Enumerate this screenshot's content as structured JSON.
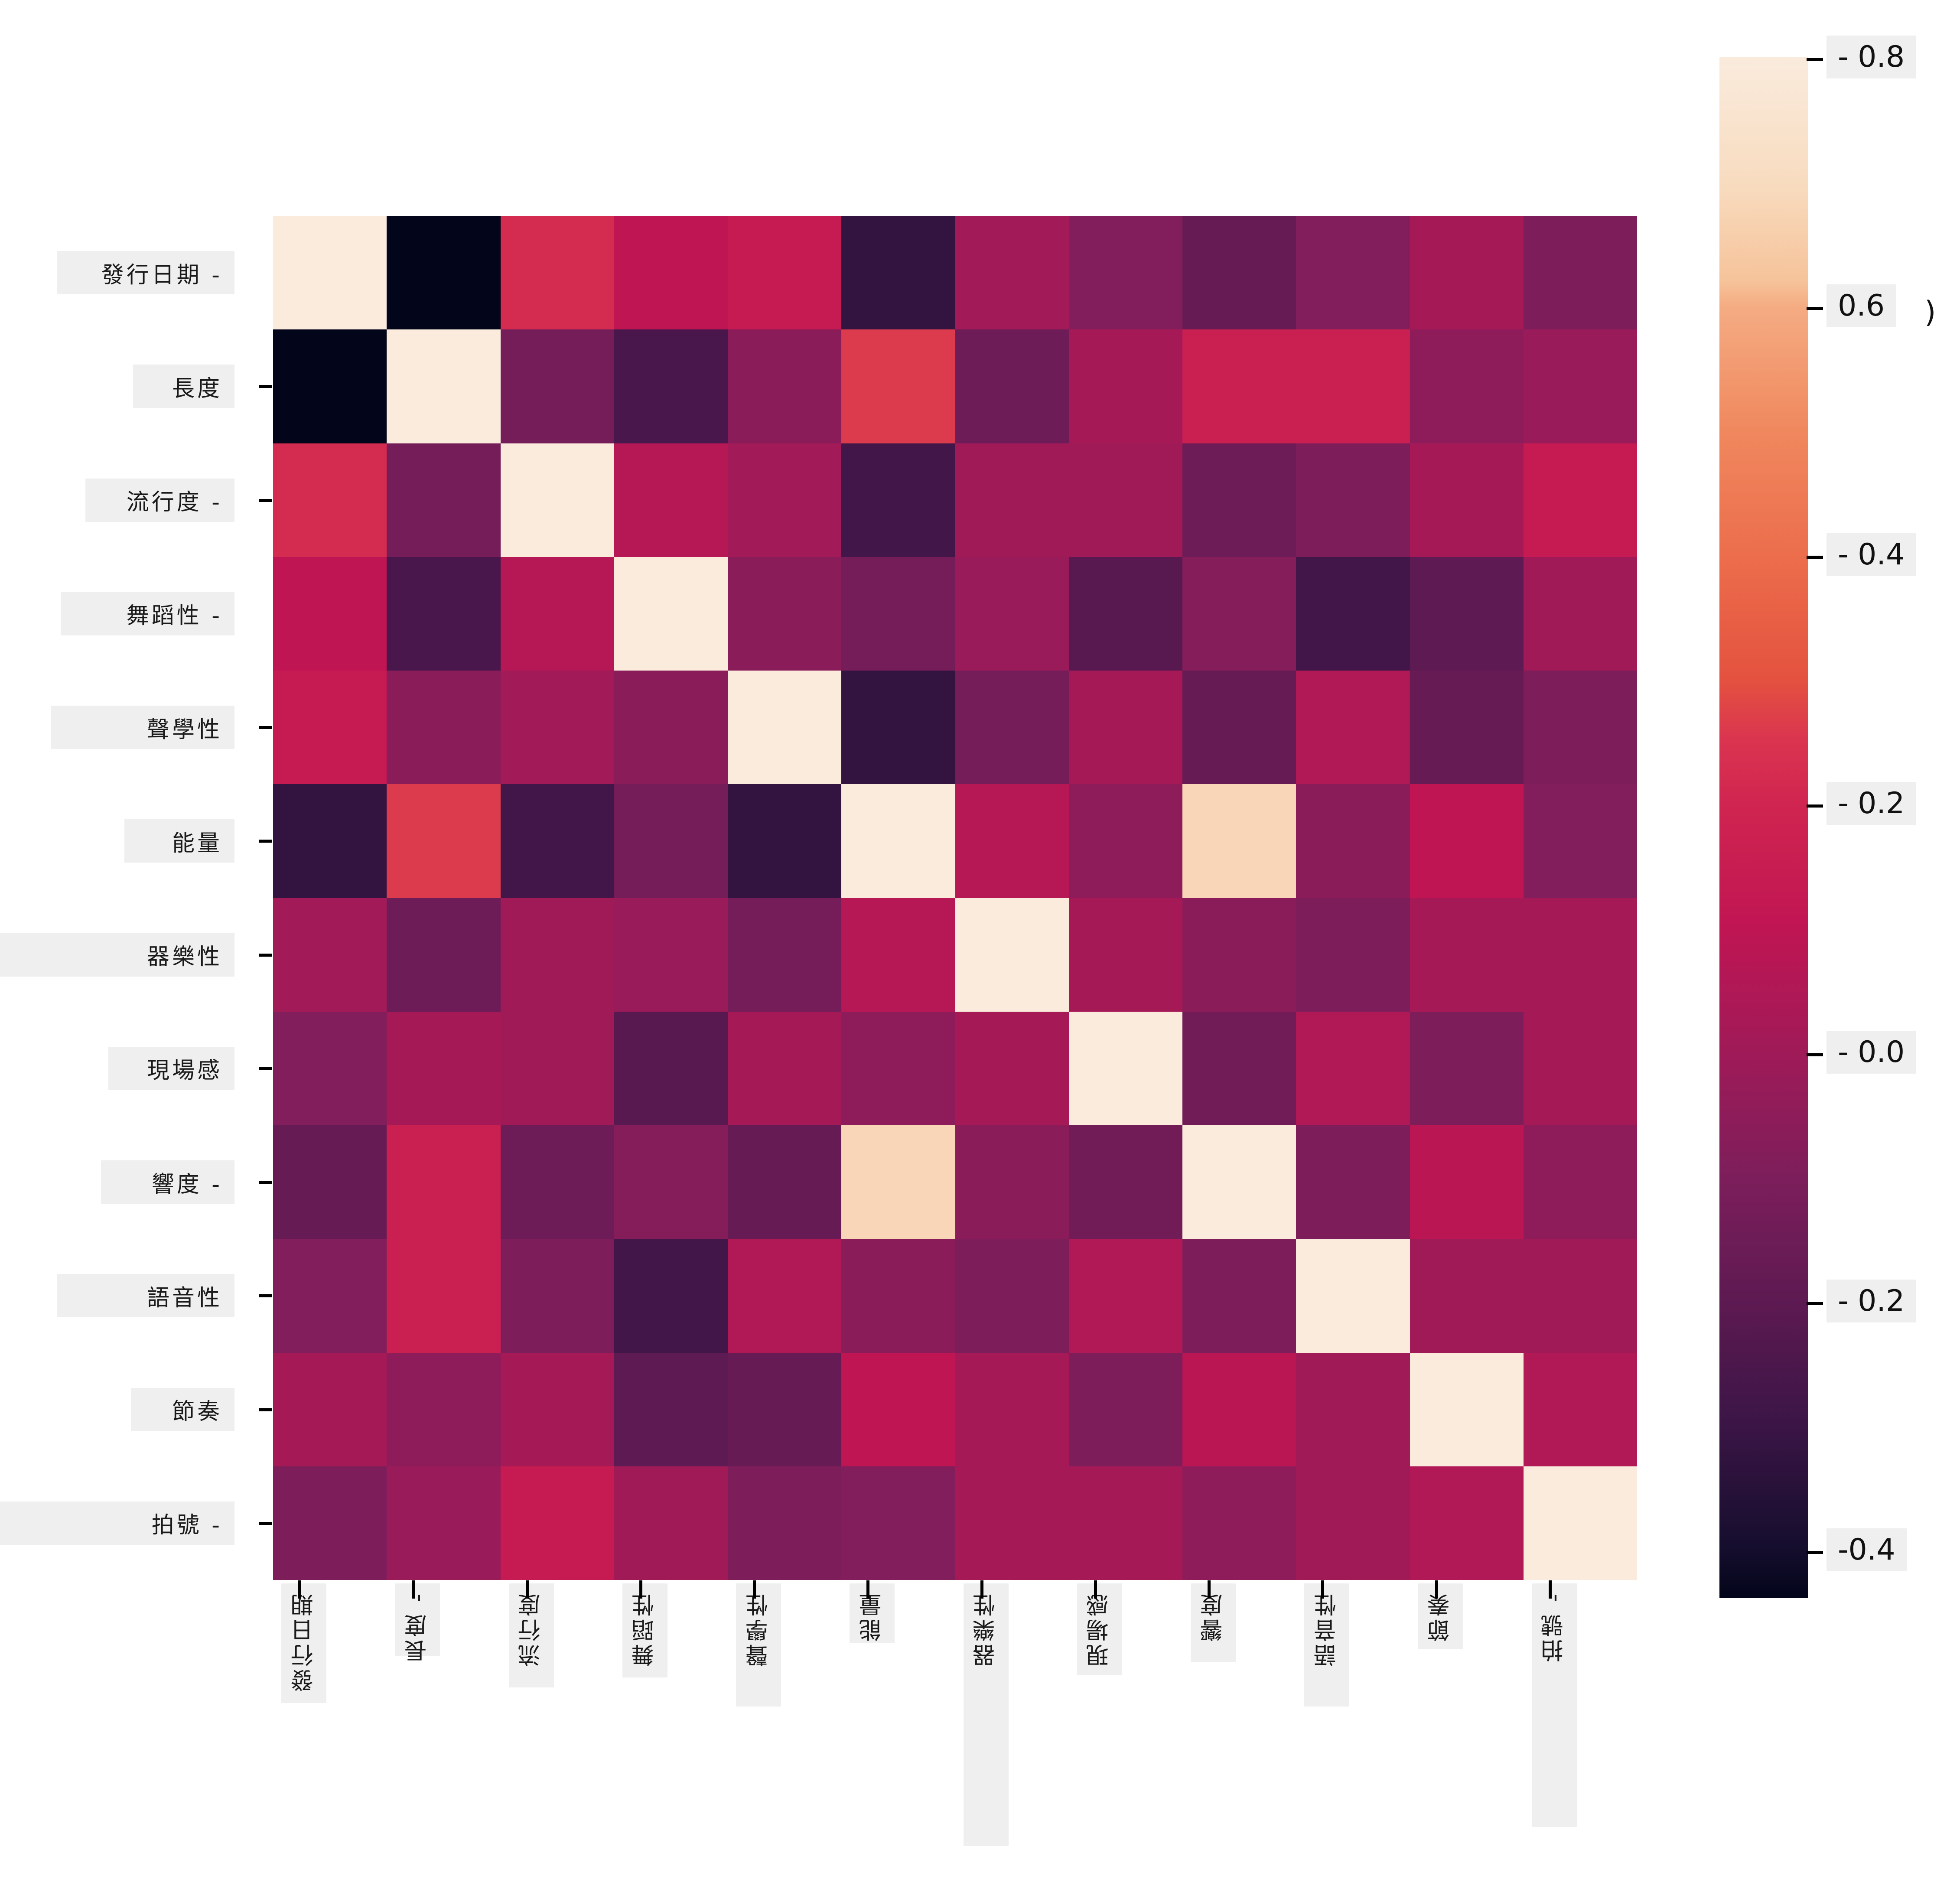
{
  "chart_data": {
    "type": "heatmap",
    "title": "",
    "description": "Correlation matrix heatmap of audio track features (Traditional Chinese labels), seaborn rocket colormap",
    "variables": [
      "發行日期",
      "長度",
      "流行度",
      "舞蹈性",
      "聲學性",
      "能量",
      "器樂性",
      "現場感",
      "響度",
      "語音性",
      "節奏",
      "拍號"
    ],
    "row_tick_labels": [
      "發行日期 -",
      "長度",
      "流行度 -",
      "舞蹈性 -",
      "聲學性",
      "能量",
      "器樂性",
      "現場感",
      "響度 -",
      "語音性",
      "節奏",
      "拍號 -"
    ],
    "col_tick_labels": [
      "發行日期",
      "長度 -",
      "流行度",
      "舞蹈性",
      "聲學性",
      "能量",
      "器樂性",
      "現場感",
      "響度",
      "語音性",
      "節奏",
      "拍號 -"
    ],
    "matrix": [
      [
        1.0,
        -0.44,
        0.22,
        0.1,
        0.13,
        -0.32,
        0.01,
        -0.09,
        -0.17,
        -0.09,
        0.02,
        -0.1
      ],
      [
        -0.44,
        1.0,
        -0.13,
        -0.26,
        -0.06,
        0.26,
        -0.15,
        0.02,
        0.16,
        0.16,
        -0.05,
        -0.02
      ],
      [
        0.22,
        -0.13,
        1.0,
        0.07,
        0.01,
        -0.28,
        0.0,
        0.0,
        -0.15,
        -0.1,
        0.02,
        0.14
      ],
      [
        0.1,
        -0.26,
        0.07,
        1.0,
        -0.06,
        -0.13,
        -0.02,
        -0.22,
        -0.08,
        -0.28,
        -0.2,
        0.0
      ],
      [
        0.13,
        -0.06,
        0.01,
        -0.06,
        1.0,
        -0.32,
        -0.13,
        0.02,
        -0.17,
        0.05,
        -0.17,
        -0.1
      ],
      [
        -0.32,
        0.26,
        -0.28,
        -0.13,
        -0.32,
        1.0,
        0.07,
        -0.05,
        0.68,
        -0.06,
        0.1,
        -0.09
      ],
      [
        0.01,
        -0.15,
        0.0,
        -0.02,
        -0.13,
        0.07,
        1.0,
        0.02,
        -0.06,
        -0.1,
        0.02,
        0.02
      ],
      [
        -0.09,
        0.02,
        0.0,
        -0.22,
        0.02,
        -0.05,
        0.02,
        1.0,
        -0.14,
        0.05,
        -0.1,
        0.02
      ],
      [
        -0.17,
        0.16,
        -0.15,
        -0.08,
        -0.17,
        0.68,
        -0.06,
        -0.14,
        1.0,
        -0.1,
        0.08,
        -0.05
      ],
      [
        -0.09,
        0.16,
        -0.1,
        -0.28,
        0.05,
        -0.06,
        -0.1,
        0.05,
        -0.1,
        1.0,
        0.0,
        0.0
      ],
      [
        0.02,
        -0.05,
        0.02,
        -0.2,
        -0.17,
        0.1,
        0.02,
        -0.1,
        0.08,
        0.0,
        1.0,
        0.05
      ],
      [
        -0.1,
        -0.02,
        0.14,
        0.0,
        -0.1,
        -0.09,
        0.02,
        0.02,
        -0.05,
        0.0,
        0.05,
        1.0
      ]
    ],
    "diagonal_value": 1.0,
    "grid": false,
    "legend_position": "right",
    "colorbar": {
      "colormap_name": "rocket",
      "vmin": -0.44,
      "vmax": 0.8,
      "tick_values": [
        0.8,
        0.6,
        0.4,
        0.2,
        0.0,
        -0.2,
        -0.4
      ],
      "tick_display": [
        "- 0.8",
        "0.6",
        "- 0.4",
        "- 0.2",
        "- 0.0",
        "- 0.2",
        "-0.4"
      ],
      "artifact": {
        "after_tick_index": 1,
        "text": ")"
      },
      "colormap_stops": [
        [
          0.8,
          "#FAEBDD"
        ],
        [
          0.7,
          "#F8DCC0"
        ],
        [
          0.62,
          "#F6C39A"
        ],
        [
          0.6,
          "#F5AC83"
        ],
        [
          0.5,
          "#F0885E"
        ],
        [
          0.4,
          "#EC6E4C"
        ],
        [
          0.3,
          "#E4523F"
        ],
        [
          0.25,
          "#DA3450"
        ],
        [
          0.2,
          "#D02550"
        ],
        [
          0.1,
          "#C01553"
        ],
        [
          0.0,
          "#A01A58"
        ],
        [
          -0.1,
          "#7D1E5B"
        ],
        [
          -0.2,
          "#5E1A52"
        ],
        [
          -0.3,
          "#3B1546"
        ],
        [
          -0.4,
          "#150E2D"
        ],
        [
          -0.44,
          "#03051A"
        ]
      ]
    }
  },
  "overlay": {
    "label_box_color": "#EFEFEF"
  }
}
